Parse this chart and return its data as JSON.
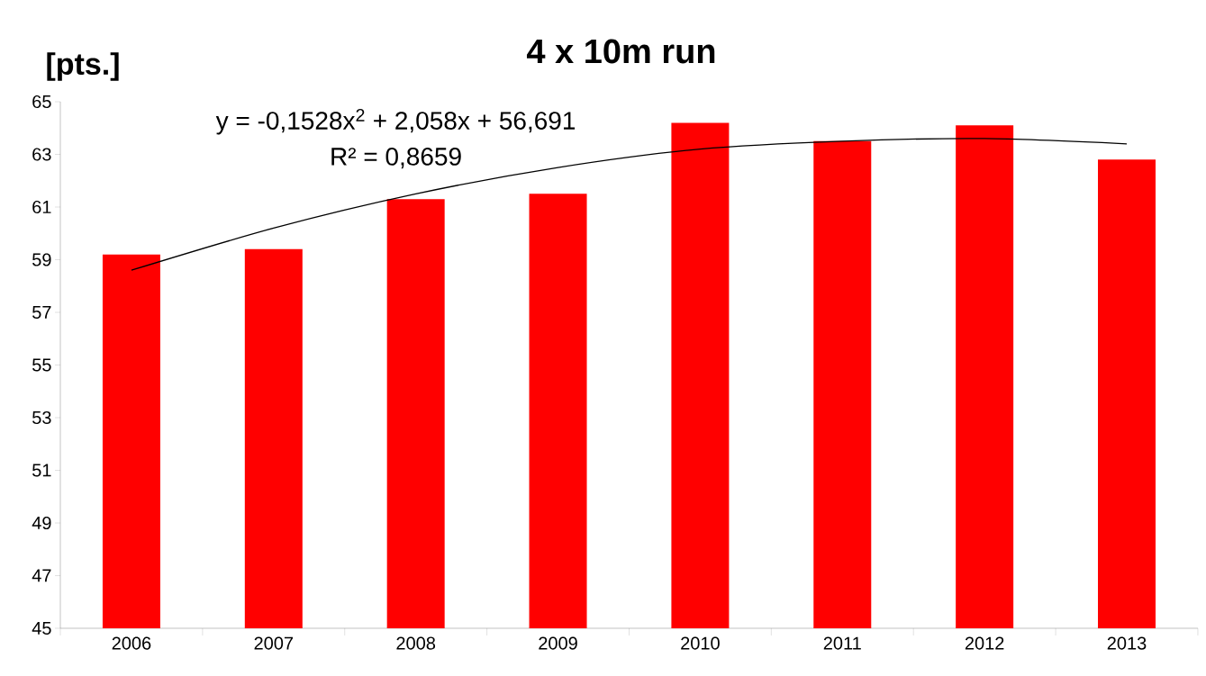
{
  "chart_data": {
    "type": "bar",
    "title": "4 x 10m run",
    "ylabel": "[pts.]",
    "categories": [
      "2006",
      "2007",
      "2008",
      "2009",
      "2010",
      "2011",
      "2012",
      "2013"
    ],
    "series": [
      {
        "color": "#ff0000",
        "values": [
          59.2,
          59.4,
          61.3,
          61.5,
          64.2,
          63.5,
          64.1,
          62.8
        ]
      },
      {
        "type": "line",
        "color": "#000000",
        "values": [
          58.6,
          60.2,
          61.5,
          62.5,
          63.2,
          63.5,
          63.6,
          63.4
        ]
      }
    ],
    "ylim": [
      45,
      65
    ],
    "yticks": [
      45,
      47,
      49,
      51,
      53,
      55,
      57,
      59,
      61,
      63,
      65
    ],
    "annotations": [
      "y = -0,1528x$^{2}$ + 2,058x + 56,691",
      "R² = 0,8659"
    ]
  }
}
